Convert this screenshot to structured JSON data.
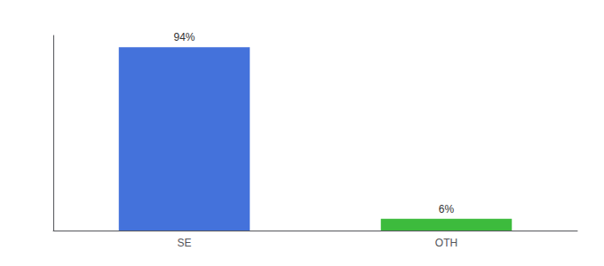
{
  "chart_data": {
    "type": "bar",
    "categories": [
      "SE",
      "OTH"
    ],
    "values": [
      94,
      6
    ],
    "value_labels": [
      "94%",
      "6%"
    ],
    "colors": [
      "#4472db",
      "#3dbb3d"
    ],
    "ylim": [
      0,
      100
    ],
    "grid": false,
    "tick_labels": "x",
    "data_labels": true
  }
}
